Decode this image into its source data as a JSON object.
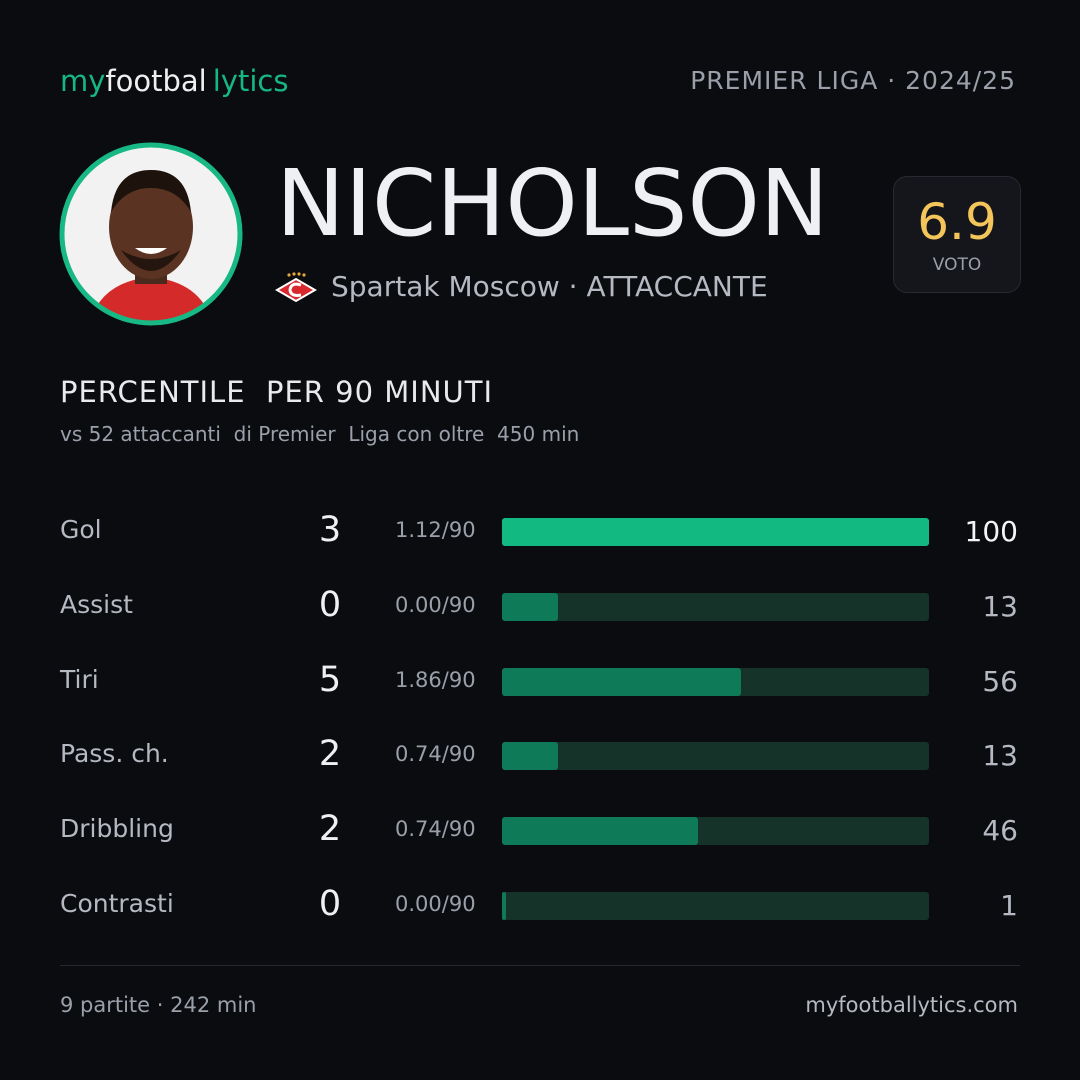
{
  "header": {
    "logo": [
      "my",
      "footbal",
      "lytics"
    ],
    "league": "PREMIER LIGA · 2024/25"
  },
  "player": {
    "name": "NICHOLSON",
    "club_role": "Spartak Moscow · ATTACCANTE",
    "rating": 6.9,
    "rating_label": "VOTO"
  },
  "section": {
    "title": "PERCENTILE  PER 90 MINUTI",
    "subtitle": "vs 52 attaccanti  di Premier  Liga con oltre  450 min"
  },
  "table": {
    "xlim": [
      0,
      100
    ],
    "track_color": "#16332a",
    "rows": [
      {
        "label": "Gol",
        "count": 3,
        "per90": "1.12/90",
        "percentile": 100,
        "color": "#12b981"
      },
      {
        "label": "Assist",
        "count": 0,
        "per90": "0.00/90",
        "percentile": 13,
        "color": "#0f7a57"
      },
      {
        "label": "Tiri",
        "count": 5,
        "per90": "1.86/90",
        "percentile": 56,
        "color": "#0f7a57"
      },
      {
        "label": "Pass. ch.",
        "count": 2,
        "per90": "0.74/90",
        "percentile": 13,
        "color": "#0f7a57"
      },
      {
        "label": "Dribbling",
        "count": 2,
        "per90": "0.74/90",
        "percentile": 46,
        "color": "#0f7a57"
      },
      {
        "label": "Contrasti",
        "count": 0,
        "per90": "0.00/90",
        "percentile": 1,
        "color": "#0f7a57"
      }
    ]
  },
  "footer": {
    "left": "9 partite · 242 min",
    "right": "myfootballytics.com"
  }
}
